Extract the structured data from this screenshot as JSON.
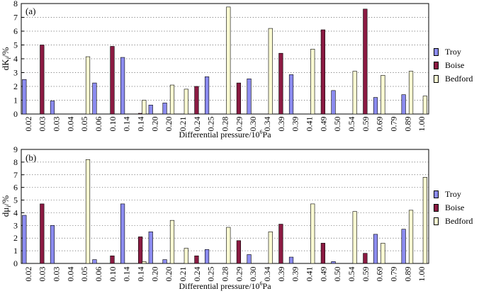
{
  "chart_data": [
    {
      "type": "bar",
      "panel_label": "(a)",
      "ylabel_main": "dK",
      "ylabel_sub": "i",
      "ylabel_suffix": "/%",
      "xlabel_main": "Differential pressure/10",
      "xlabel_sup": "6",
      "xlabel_suffix": "Pa",
      "ylim": [
        0,
        8
      ],
      "yticks": [
        "0",
        "1",
        "2",
        "3",
        "4",
        "5",
        "6",
        "7",
        "8"
      ],
      "grid": "horizontal dotted",
      "categories": [
        "0.02",
        "0.03",
        "0.03",
        "0.04",
        "0.05",
        "0.06",
        "0.10",
        "0.14",
        "0.14",
        "0.20",
        "0.20",
        "0.21",
        "0.24",
        "0.25",
        "0.28",
        "0.29",
        "0.30",
        "0.34",
        "0.39",
        "0.39",
        "0.41",
        "0.49",
        "0.50",
        "0.54",
        "0.59",
        "0.69",
        "0.79",
        "0.89",
        "1.00"
      ],
      "series": [
        {
          "name": "Troy",
          "color": "#8c8cf0",
          "values": [
            2.5,
            0,
            0.95,
            0,
            0,
            2.25,
            0,
            4.1,
            0,
            0.65,
            0.8,
            0,
            0,
            2.7,
            0,
            0,
            2.55,
            0,
            0,
            2.85,
            0,
            0,
            1.7,
            0,
            0,
            1.2,
            0,
            1.4,
            0
          ]
        },
        {
          "name": "Boise",
          "color": "#8b1a42",
          "values": [
            0,
            5.0,
            0,
            0,
            0,
            0,
            4.9,
            0,
            0.05,
            0,
            0,
            0,
            2.0,
            0,
            0,
            2.25,
            0,
            0,
            4.4,
            0,
            0,
            6.1,
            0,
            0,
            7.6,
            0,
            0,
            0,
            0
          ]
        },
        {
          "name": "Bedford",
          "color": "#fbfbd2",
          "values": [
            0,
            0,
            0,
            0,
            4.15,
            0,
            0,
            0,
            1.0,
            0,
            2.1,
            1.8,
            0,
            0,
            7.75,
            0,
            0,
            6.2,
            0,
            0,
            4.7,
            0,
            0,
            3.1,
            0,
            2.8,
            0,
            3.1,
            1.3
          ]
        }
      ]
    },
    {
      "type": "bar",
      "panel_label": "(b)",
      "ylabel_main": "dμ",
      "ylabel_sub": "i",
      "ylabel_suffix": "/%",
      "xlabel_main": "Differential pressure/10",
      "xlabel_sup": "6",
      "xlabel_suffix": "Pa",
      "ylim": [
        0,
        9
      ],
      "yticks": [
        "0",
        "1",
        "2",
        "3",
        "4",
        "5",
        "6",
        "7",
        "8",
        "9"
      ],
      "grid": "horizontal dotted",
      "categories": [
        "0.02",
        "0.03",
        "0.03",
        "0.04",
        "0.05",
        "0.06",
        "0.10",
        "0.14",
        "0.14",
        "0.20",
        "0.20",
        "0.21",
        "0.24",
        "0.25",
        "0.28",
        "0.29",
        "0.30",
        "0.34",
        "0.39",
        "0.39",
        "0.41",
        "0.49",
        "0.50",
        "0.54",
        "0.59",
        "0.69",
        "0.79",
        "0.89",
        "1.00"
      ],
      "series": [
        {
          "name": "Troy",
          "color": "#8c8cf0",
          "values": [
            3.8,
            0,
            3.0,
            0,
            0,
            0.3,
            0,
            4.7,
            0,
            2.5,
            0.3,
            0,
            0,
            1.1,
            0,
            0,
            0.7,
            0,
            0,
            0.5,
            0,
            0,
            0.15,
            0,
            0,
            2.3,
            0,
            2.7,
            0
          ]
        },
        {
          "name": "Boise",
          "color": "#8b1a42",
          "values": [
            0,
            4.7,
            0,
            0,
            0,
            0,
            0.6,
            0,
            2.1,
            0,
            0,
            0,
            0.6,
            0,
            0,
            1.8,
            0,
            0,
            3.1,
            0,
            0,
            1.6,
            0,
            0,
            0.8,
            0,
            0,
            0,
            0
          ]
        },
        {
          "name": "Bedford",
          "color": "#fbfbd2",
          "values": [
            0,
            0,
            0,
            0,
            8.2,
            0,
            0,
            0,
            0.15,
            0,
            3.4,
            1.2,
            0,
            0,
            2.85,
            0,
            0,
            2.5,
            0,
            0,
            4.7,
            0,
            0,
            4.1,
            0,
            1.6,
            0,
            4.2,
            6.8
          ]
        }
      ]
    }
  ]
}
